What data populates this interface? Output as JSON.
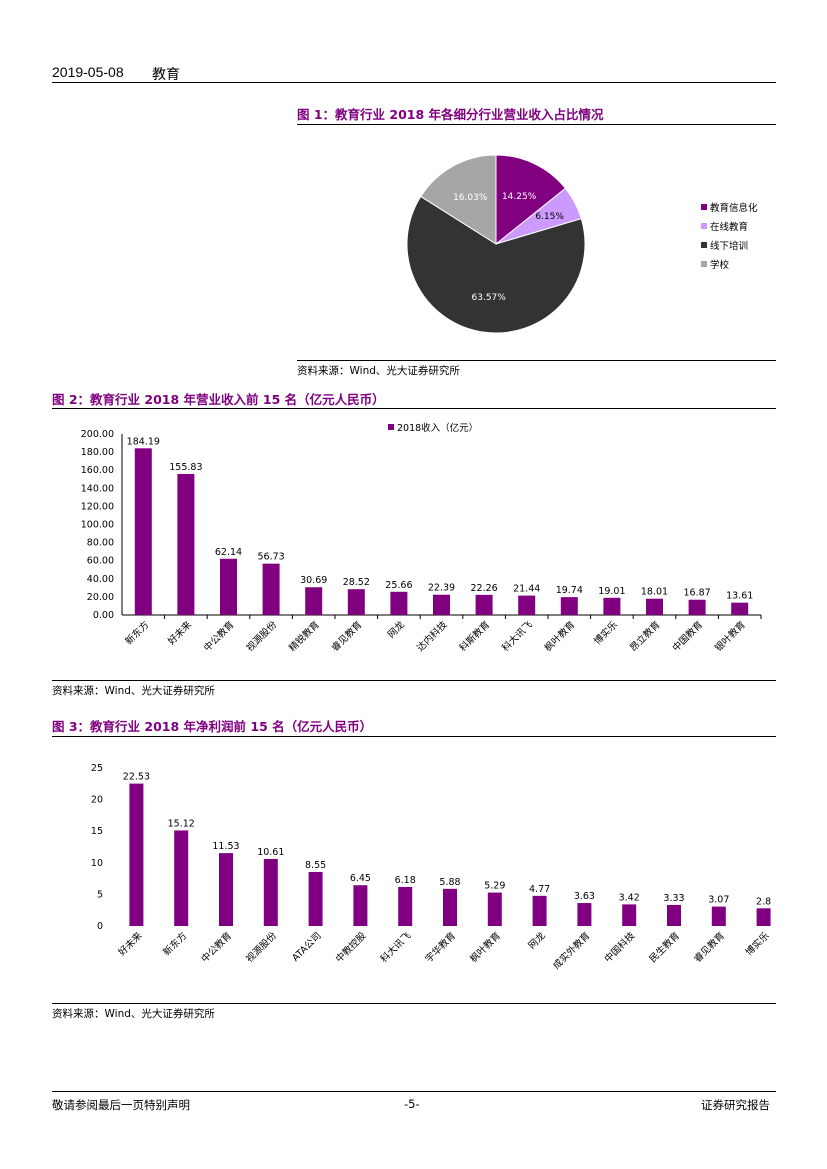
{
  "header": {
    "date": "2019-05-08",
    "topic": "教育"
  },
  "figure1": {
    "title": "图 1：教育行业 2018 年各细分行业营业收入占比情况",
    "source": "资料来源：Wind、光大证券研究所",
    "chart_data": {
      "type": "pie",
      "labels": [
        "教育信息化",
        "在线教育",
        "线下培训",
        "学校"
      ],
      "values": [
        14.25,
        6.15,
        63.57,
        16.03
      ],
      "data_labels": [
        "14.25%",
        "6.15%",
        "63.57%",
        "16.03%"
      ],
      "colors": [
        "#800080",
        "#CC99FF",
        "#333333",
        "#A6A6A6"
      ],
      "legend_position": "right"
    }
  },
  "figure2": {
    "title": "图 2：教育行业 2018 年营业收入前 15 名（亿元人民币）",
    "source": "资料来源：Wind、光大证券研究所",
    "chart_data": {
      "type": "bar",
      "categories": [
        "新东方",
        "好未来",
        "中公教育",
        "视源股份",
        "精锐教育",
        "睿见教育",
        "网龙",
        "达内科技",
        "科斯教育",
        "科大讯飞",
        "枫叶教育",
        "博实乐",
        "昂立教育",
        "中国教育",
        "银叶教育"
      ],
      "series": [
        {
          "name": "2018收入（亿元）",
          "values": [
            184.19,
            155.83,
            62.14,
            56.73,
            30.69,
            28.52,
            25.66,
            22.39,
            22.26,
            21.44,
            19.74,
            19.01,
            18.01,
            16.87,
            13.61
          ]
        }
      ],
      "ylim": [
        0,
        200
      ],
      "yticks": [
        "0.00",
        "20.00",
        "40.00",
        "60.00",
        "80.00",
        "100.00",
        "120.00",
        "140.00",
        "160.00",
        "180.00",
        "200.00"
      ],
      "color": "#800080",
      "legend_position": "top"
    }
  },
  "figure3": {
    "title": "图 3：教育行业 2018 年净利润前 15 名（亿元人民币）",
    "source": "资料来源：Wind、光大证券研究所",
    "chart_data": {
      "type": "bar",
      "categories": [
        "好未来",
        "新东方",
        "中公教育",
        "视源股份",
        "ATA公司",
        "中教控股",
        "科大讯飞",
        "宇华教育",
        "枫叶教育",
        "网龙",
        "成实外教育",
        "中国科技",
        "民生教育",
        "睿见教育",
        "博实乐"
      ],
      "values": [
        22.53,
        15.12,
        11.53,
        10.61,
        8.55,
        6.45,
        6.18,
        5.88,
        5.29,
        4.77,
        3.63,
        3.42,
        3.33,
        3.07,
        2.8
      ],
      "ylim": [
        0,
        25
      ],
      "yticks": [
        "0",
        "5",
        "10",
        "15",
        "20",
        "25"
      ],
      "color": "#800080"
    }
  },
  "footer": {
    "left": "敬请参阅最后一页特别声明",
    "center": "-5-",
    "right": "证券研究报告"
  }
}
